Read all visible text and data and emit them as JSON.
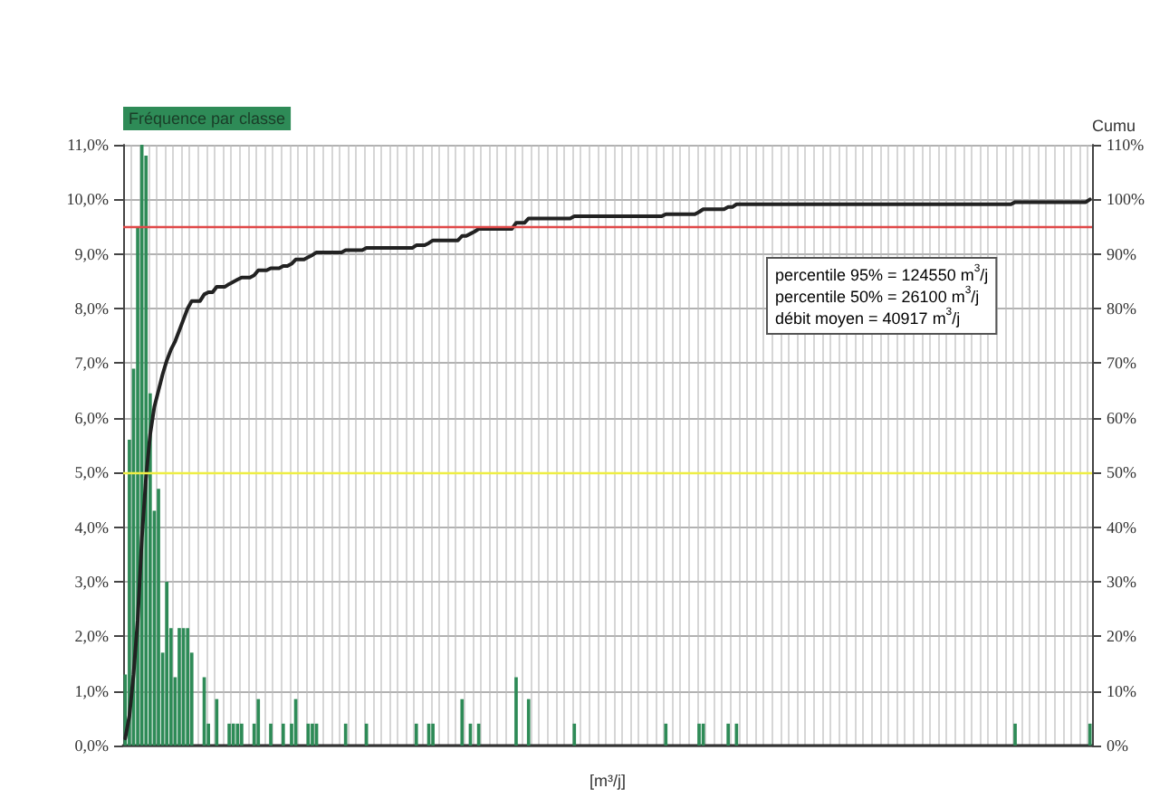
{
  "chart_data": {
    "type": "bar",
    "ylabel": "Fréquence par classe",
    "y2label": "Cumu",
    "xlabel": "[m³/j]",
    "annotations": [
      "percentile 95% = 124550 m$^{3}$/j",
      "percentile 50% = 26100 m$^{3}$/j",
      "débit moyen = 40917 m$^{3}$/j"
    ],
    "categories": [
      null,
      null,
      null,
      null,
      null,
      null,
      null,
      null,
      null,
      null,
      null,
      null,
      null,
      null,
      null,
      null,
      null,
      null,
      null,
      null,
      null,
      null,
      null,
      null,
      null,
      null,
      null,
      null,
      null,
      null,
      null,
      null,
      null,
      null,
      null,
      null,
      null,
      null,
      null,
      null,
      null,
      null,
      null,
      null,
      null,
      null,
      null,
      null,
      null,
      null,
      null,
      null,
      null,
      null,
      null,
      null,
      null,
      null,
      null,
      null,
      null,
      null,
      null,
      null,
      null,
      null,
      null,
      null,
      null,
      null,
      null,
      null,
      null,
      null,
      null,
      null,
      null,
      null,
      null,
      null,
      null,
      null,
      null,
      null,
      null,
      null,
      null,
      null,
      null,
      null,
      null,
      null,
      null,
      null,
      null,
      null,
      null,
      null,
      null,
      null,
      null,
      null,
      null,
      null,
      null,
      null,
      null,
      null,
      null,
      null,
      null,
      null,
      null,
      null,
      null,
      null,
      null,
      null,
      null,
      null,
      null,
      null,
      null,
      null,
      null,
      null,
      null,
      null,
      null,
      null,
      null,
      null,
      null,
      null,
      null,
      null,
      null,
      null,
      null,
      null,
      null,
      null,
      null,
      null,
      null,
      null,
      null,
      null,
      null,
      null,
      null,
      null,
      null,
      null,
      null,
      null,
      null,
      null,
      null,
      null,
      null,
      null,
      null,
      null,
      null,
      null,
      null,
      null,
      null,
      null,
      null,
      null,
      null,
      null,
      null,
      null,
      null,
      null,
      null,
      null,
      null,
      null,
      null,
      null,
      null,
      null,
      null,
      null,
      null,
      null,
      null,
      null,
      null,
      null,
      null,
      null,
      null,
      null,
      null,
      null,
      null,
      null,
      null,
      null,
      null,
      null,
      null,
      null,
      null,
      null,
      null,
      null,
      null,
      null,
      null,
      null,
      null,
      null,
      null,
      null,
      null,
      null,
      null,
      null,
      null,
      null,
      null,
      null,
      null,
      null,
      null,
      null,
      null
    ],
    "series": [
      {
        "color": "#2e8b57",
        "values": [
          1.3,
          5.6,
          6.9,
          9.5,
          11,
          10.8,
          6.45,
          4.3,
          4.7,
          1.7,
          3,
          2.15,
          1.25,
          2.15,
          2.15,
          2.15,
          1.7,
          0,
          0,
          1.25,
          0.4,
          0,
          0.85,
          0,
          0,
          0.4,
          0.4,
          0.4,
          0.4,
          0,
          0,
          0.4,
          0.85,
          0,
          0,
          0.4,
          0,
          0,
          0.4,
          0,
          0.4,
          0.85,
          0,
          0,
          0.4,
          0.4,
          0.4,
          0,
          0,
          0,
          0,
          0,
          0,
          0.4,
          0,
          0,
          0,
          0,
          0.4,
          0,
          0,
          0,
          0,
          0,
          0,
          0,
          0,
          0,
          0,
          0,
          0.4,
          0,
          0,
          0.4,
          0.4,
          0,
          0,
          0,
          0,
          0,
          0,
          0.85,
          0,
          0.4,
          0,
          0.4,
          0,
          0,
          0,
          0,
          0,
          0,
          0,
          0,
          1.25,
          0,
          0,
          0.85,
          0,
          0,
          0,
          0,
          0,
          0,
          0,
          0,
          0,
          0,
          0.4,
          0,
          0,
          0,
          0,
          0,
          0,
          0,
          0,
          0,
          0,
          0,
          0,
          0,
          0,
          0,
          0,
          0,
          0,
          0,
          0,
          0,
          0.4,
          0,
          0,
          0,
          0,
          0,
          0,
          0,
          0.4,
          0.4,
          0,
          0,
          0,
          0,
          0,
          0.4,
          0,
          0.4,
          0,
          0,
          0,
          0,
          0,
          0,
          0,
          0,
          0,
          0,
          0,
          0,
          0,
          0,
          0,
          0,
          0,
          0,
          0,
          0,
          0,
          0,
          0,
          0,
          0,
          0,
          0,
          0,
          0,
          0,
          0,
          0,
          0,
          0,
          0,
          0,
          0,
          0,
          0,
          0,
          0,
          0,
          0,
          0,
          0,
          0,
          0,
          0,
          0,
          0,
          0,
          0,
          0,
          0,
          0,
          0,
          0,
          0,
          0,
          0,
          0,
          0,
          0,
          0,
          0,
          0,
          0.4,
          0,
          0,
          0,
          0,
          0,
          0,
          0,
          0,
          0,
          0,
          0,
          0,
          0,
          0,
          0,
          0,
          0,
          0.4
        ]
      },
      {
        "type": "line",
        "axis": "y2",
        "color": "#222222",
        "values": [
          1.3,
          5.4,
          13,
          23,
          38,
          49,
          57,
          62,
          65,
          68,
          70.5,
          72.5,
          74,
          76,
          78,
          80,
          81.4,
          81.4,
          81.4,
          82.6,
          83,
          83,
          84,
          84,
          84,
          84.5,
          84.9,
          85.3,
          85.7,
          85.7,
          85.7,
          86.1,
          87,
          87,
          87,
          87.4,
          87.4,
          87.4,
          87.8,
          87.8,
          88.2,
          89,
          89,
          89,
          89.4,
          89.8,
          90.3,
          90.3,
          90.3,
          90.3,
          90.3,
          90.3,
          90.3,
          90.7,
          90.7,
          90.7,
          90.7,
          90.7,
          91.1,
          91.1,
          91.1,
          91.1,
          91.1,
          91.1,
          91.1,
          91.1,
          91.1,
          91.1,
          91.1,
          91.1,
          91.6,
          91.6,
          91.6,
          92,
          92.5,
          92.5,
          92.5,
          92.5,
          92.5,
          92.5,
          92.5,
          93.3,
          93.3,
          93.7,
          94.1,
          94.6,
          94.6,
          94.6,
          94.6,
          94.6,
          94.6,
          94.6,
          94.6,
          94.6,
          95.7,
          95.7,
          95.7,
          96.5,
          96.5,
          96.5,
          96.5,
          96.5,
          96.5,
          96.5,
          96.5,
          96.5,
          96.5,
          96.5,
          96.9,
          96.9,
          96.9,
          96.9,
          96.9,
          96.9,
          96.9,
          96.9,
          96.9,
          96.9,
          96.9,
          96.9,
          96.9,
          96.9,
          96.9,
          96.9,
          96.9,
          96.9,
          96.9,
          96.9,
          96.9,
          96.9,
          97.3,
          97.3,
          97.3,
          97.3,
          97.3,
          97.3,
          97.3,
          97.3,
          97.7,
          98.2,
          98.2,
          98.2,
          98.2,
          98.2,
          98.2,
          98.6,
          98.6,
          99.1,
          99.1,
          99.1,
          99.1,
          99.1,
          99.1,
          99.1,
          99.1,
          99.1,
          99.1,
          99.1,
          99.1,
          99.1,
          99.1,
          99.1,
          99.1,
          99.1,
          99.1,
          99.1,
          99.1,
          99.1,
          99.1,
          99.1,
          99.1,
          99.1,
          99.1,
          99.1,
          99.1,
          99.1,
          99.1,
          99.1,
          99.1,
          99.1,
          99.1,
          99.1,
          99.1,
          99.1,
          99.1,
          99.1,
          99.1,
          99.1,
          99.1,
          99.1,
          99.1,
          99.1,
          99.1,
          99.1,
          99.1,
          99.1,
          99.1,
          99.1,
          99.1,
          99.1,
          99.1,
          99.1,
          99.1,
          99.1,
          99.1,
          99.1,
          99.1,
          99.1,
          99.1,
          99.1,
          99.1,
          99.1,
          99.1,
          99.1,
          99.5,
          99.5,
          99.5,
          99.5,
          99.5,
          99.5,
          99.5,
          99.5,
          99.5,
          99.5,
          99.5,
          99.5,
          99.5,
          99.5,
          99.5,
          99.5,
          99.5,
          99.5,
          100
        ]
      }
    ],
    "ylim": [
      0,
      11
    ],
    "yticks": [
      {
        "value": 0,
        "label": "0,0%"
      },
      {
        "value": 1,
        "label": "1,0%"
      },
      {
        "value": 2,
        "label": "2,0%"
      },
      {
        "value": 3,
        "label": "3,0%"
      },
      {
        "value": 4,
        "label": "4,0%"
      },
      {
        "value": 5,
        "label": "5,0%"
      },
      {
        "value": 6,
        "label": "6,0%"
      },
      {
        "value": 7,
        "label": "7,0%"
      },
      {
        "value": 8,
        "label": "8,0%"
      },
      {
        "value": 9,
        "label": "9,0%"
      },
      {
        "value": 10,
        "label": "10,0%"
      },
      {
        "value": 11,
        "label": "11,0%"
      }
    ],
    "y2lim": [
      0,
      110
    ],
    "y2ticks": [
      {
        "value": 0,
        "label": "0%"
      },
      {
        "value": 10,
        "label": "10%"
      },
      {
        "value": 20,
        "label": "20%"
      },
      {
        "value": 30,
        "label": "30%"
      },
      {
        "value": 40,
        "label": "40%"
      },
      {
        "value": 50,
        "label": "50%"
      },
      {
        "value": 60,
        "label": "60%"
      },
      {
        "value": 70,
        "label": "70%"
      },
      {
        "value": 80,
        "label": "80%"
      },
      {
        "value": 90,
        "label": "90%"
      },
      {
        "value": 100,
        "label": "100%"
      },
      {
        "value": 110,
        "label": "110%"
      }
    ],
    "ref_lines": [
      {
        "axis": "y2",
        "value": 95,
        "color": "#e04848"
      },
      {
        "axis": "y2",
        "value": 50,
        "color": "#eeee44"
      }
    ],
    "grid": true,
    "marker": "none",
    "line_style": "solid"
  }
}
